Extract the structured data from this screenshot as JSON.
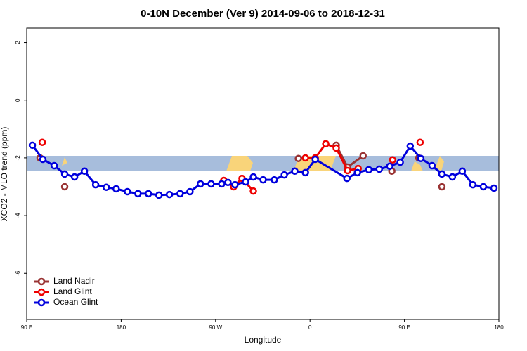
{
  "chart_data": {
    "type": "line",
    "title": "0-10N December (Ver 9)   2014-09-06 to 2018-12-31",
    "x_label": "Longitude",
    "y_label": "XCO2 - MLO trend (ppm)",
    "xlim": [
      90,
      540
    ],
    "ylim": [
      -7.6,
      2.5
    ],
    "xticks": [
      {
        "value": 90,
        "label": "90 E"
      },
      180,
      {
        "value": 270,
        "label": "90 W"
      },
      {
        "value": 360,
        "label": "0"
      },
      {
        "value": 450,
        "label": "90 E"
      },
      {
        "value": 540,
        "label": "180"
      }
    ],
    "yticks": [
      2,
      0,
      -2,
      -4,
      -6
    ],
    "legend": "bottom-left",
    "series": [
      {
        "name": "Land Nadir",
        "color": "#993333",
        "x": [
          102.7,
          null,
          126.2,
          null,
          348.9,
          null,
          385,
          395.8,
          410.6,
          null,
          438,
          null,
          463.6,
          null,
          485.7
        ],
        "values": [
          -2.0,
          null,
          -3.0,
          null,
          -2.02,
          null,
          -1.56,
          -2.32,
          -1.93,
          null,
          -2.46,
          null,
          -2.0,
          null,
          -3.0
        ]
      },
      {
        "name": "Land Glint",
        "color": "#ee0000",
        "x": [
          104.8,
          null,
          277.8,
          287.2,
          295.2,
          306,
          null,
          355.6,
          365,
          375,
          385,
          395.8,
          405.9,
          null,
          438.7,
          null,
          464.9
        ],
        "values": [
          -1.46,
          null,
          -2.78,
          -3.0,
          -2.71,
          -3.15,
          null,
          -2.0,
          -2.0,
          -1.51,
          -1.66,
          -2.44,
          -2.37,
          null,
          -2.07,
          null,
          -1.46
        ]
      },
      {
        "name": "Ocean Glint",
        "color": "#0000dd",
        "x": [
          95.4,
          105.4,
          116.2,
          126.2,
          135.6,
          145,
          155.7,
          165.8,
          175.2,
          186,
          196,
          206,
          216,
          226,
          236.2,
          245.6,
          255.6,
          265.7,
          275.8,
          281.8,
          288.5,
          298.6,
          306,
          315.3,
          326,
          335.5,
          345.5,
          355.6,
          365,
          395.2,
          405.2,
          416,
          426,
          436,
          446,
          455.5,
          465.6,
          476.3,
          485.7,
          495.7,
          505.1,
          515.2,
          525.2,
          535.3
        ],
        "values": [
          -1.56,
          -2.05,
          -2.27,
          -2.56,
          -2.66,
          -2.46,
          -2.93,
          -3.02,
          -3.07,
          -3.17,
          -3.24,
          -3.24,
          -3.29,
          -3.27,
          -3.24,
          -3.17,
          -2.9,
          -2.9,
          -2.9,
          -2.85,
          -2.93,
          -2.83,
          -2.66,
          -2.76,
          -2.76,
          -2.59,
          -2.46,
          -2.51,
          -2.05,
          -2.71,
          -2.51,
          -2.41,
          -2.39,
          -2.29,
          -2.15,
          -1.59,
          -2.02,
          -2.27,
          -2.56,
          -2.66,
          -2.46,
          -2.93,
          -3.0,
          -3.05
        ]
      }
    ]
  }
}
